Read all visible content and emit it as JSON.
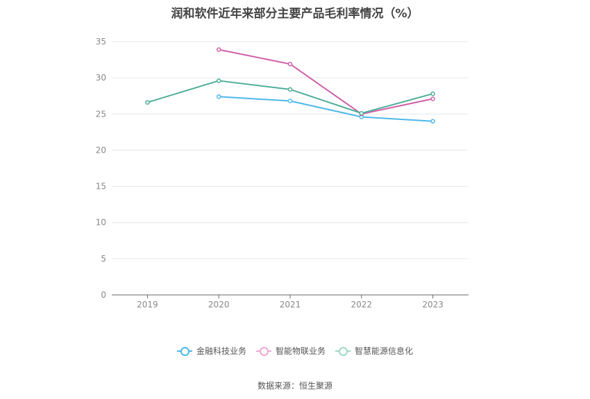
{
  "chart_data": {
    "type": "line",
    "title": "润和软件近年来部分主要产品毛利率情况（%）",
    "categories": [
      "2019",
      "2020",
      "2021",
      "2022",
      "2023"
    ],
    "ylim": [
      0,
      35
    ],
    "yticks": [
      0,
      5,
      10,
      15,
      20,
      25,
      30,
      35
    ],
    "grid": true,
    "legend_position": "bottom",
    "series": [
      {
        "name": "金融科技业务",
        "color": "#4db8ea",
        "values": [
          null,
          27.4,
          26.8,
          24.6,
          24.0
        ]
      },
      {
        "name": "智能物联业务",
        "color": "#d05fa8",
        "values": [
          null,
          33.9,
          31.9,
          25.0,
          27.1
        ]
      },
      {
        "name": "智慧能源信息化",
        "color": "#4dae98",
        "values": [
          26.6,
          29.6,
          28.4,
          25.1,
          27.8
        ]
      }
    ]
  },
  "legend_marker_colors": {
    "金融科技业务": "#4db8ea",
    "智能物联业务": "#f0a8d0",
    "智慧能源信息化": "#9ed8c8"
  },
  "source": "数据来源：恒生聚源"
}
